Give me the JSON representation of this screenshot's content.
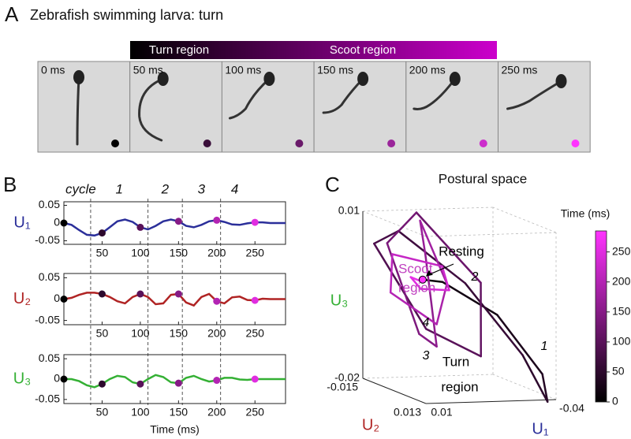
{
  "panel_labels": [
    "A",
    "B",
    "C"
  ],
  "panel_a": {
    "title": "Zebrafish swimming larva: turn",
    "bar_labels": [
      "Turn region",
      "Scoot region"
    ],
    "frames": [
      "0 ms",
      "50 ms",
      "100 ms",
      "150 ms",
      "200 ms",
      "250 ms"
    ],
    "dot_colors": [
      "#000000",
      "#3a0f3a",
      "#6a1a6a",
      "#9a259a",
      "#cc2ecc",
      "#ff33ff"
    ]
  },
  "panel_b": {
    "cycle_label": "cycle",
    "cycle_numbers": [
      "1",
      "2",
      "3",
      "4"
    ],
    "cycle_boundaries": [
      35,
      110,
      155,
      205
    ]
  },
  "chart_data": [
    {
      "type": "line",
      "ylabel": "U₁",
      "color": "#2b2f9a",
      "x": [
        0,
        10,
        20,
        30,
        40,
        50,
        60,
        70,
        80,
        90,
        100,
        110,
        120,
        130,
        140,
        150,
        160,
        170,
        180,
        190,
        200,
        210,
        220,
        230,
        240,
        250,
        260,
        270,
        280,
        290
      ],
      "values": [
        0,
        -0.005,
        -0.02,
        -0.033,
        -0.035,
        -0.028,
        -0.012,
        0.005,
        0.01,
        0.003,
        -0.012,
        -0.018,
        -0.008,
        0.005,
        0.01,
        0.005,
        -0.008,
        -0.012,
        -0.005,
        0.005,
        0.008,
        0.003,
        -0.004,
        -0.005,
        -0.001,
        0.002,
        0.002,
        0,
        0,
        0
      ],
      "ylim": [
        -0.06,
        0.06
      ],
      "yticks": [
        -0.05,
        0,
        0.05
      ],
      "xlim": [
        0,
        290
      ],
      "xticks": [
        50,
        100,
        150,
        200,
        250
      ],
      "markers": {
        "x": [
          0,
          50,
          100,
          150,
          200,
          250
        ]
      }
    },
    {
      "type": "line",
      "ylabel": "U₂",
      "color": "#b02424",
      "x": [
        0,
        10,
        20,
        30,
        40,
        50,
        60,
        70,
        80,
        90,
        100,
        110,
        120,
        130,
        140,
        150,
        160,
        170,
        180,
        190,
        200,
        210,
        220,
        230,
        240,
        250,
        260,
        270,
        280,
        290
      ],
      "values": [
        0,
        0.003,
        0.01,
        0.015,
        0.015,
        0.012,
        0.005,
        -0.005,
        -0.01,
        0.005,
        0.012,
        0.005,
        -0.012,
        -0.01,
        0.01,
        0.012,
        -0.008,
        -0.015,
        0.005,
        0.012,
        -0.005,
        -0.01,
        0.004,
        0.006,
        -0.002,
        -0.003,
        0.001,
        0,
        0,
        0
      ],
      "ylim": [
        -0.06,
        0.06
      ],
      "yticks": [
        -0.05,
        0,
        0.05
      ],
      "xlim": [
        0,
        290
      ],
      "xticks": [
        50,
        100,
        150,
        200,
        250
      ],
      "markers": {
        "x": [
          0,
          50,
          100,
          150,
          200,
          250
        ]
      }
    },
    {
      "type": "line",
      "ylabel": "U₃",
      "color": "#34b034",
      "xlabel": "Time (ms)",
      "x": [
        0,
        10,
        20,
        30,
        40,
        50,
        60,
        70,
        80,
        90,
        100,
        110,
        120,
        130,
        140,
        150,
        160,
        170,
        180,
        190,
        200,
        210,
        220,
        230,
        240,
        250,
        260,
        270,
        280,
        290
      ],
      "values": [
        0,
        0,
        -0.005,
        -0.015,
        -0.02,
        -0.012,
        0,
        0.008,
        0.005,
        -0.008,
        -0.012,
        0,
        0.01,
        0.005,
        -0.008,
        -0.01,
        0.003,
        0.008,
        0,
        -0.006,
        -0.003,
        0.003,
        0.003,
        -0.001,
        -0.002,
        0,
        0,
        0,
        0,
        0
      ],
      "ylim": [
        -0.06,
        0.06
      ],
      "yticks": [
        -0.05,
        0,
        0.05
      ],
      "xlim": [
        0,
        290
      ],
      "xticks": [
        50,
        100,
        150,
        200,
        250
      ],
      "markers": {
        "x": [
          0,
          50,
          100,
          150,
          200,
          250
        ]
      }
    },
    {
      "type": "line3d",
      "title": "Postural space",
      "xlabel": "U₁",
      "ylabel": "U₂",
      "zlabel": "U₃",
      "xlabel_color": "#2b2f9a",
      "ylabel_color": "#b02424",
      "zlabel_color": "#34b034",
      "xlim": [
        0.01,
        -0.04
      ],
      "ylim": [
        0.013,
        -0.015
      ],
      "zlim": [
        -0.02,
        0.01
      ],
      "xticks": [
        0.01,
        -0.04
      ],
      "yticks": [
        -0.015,
        0.013
      ],
      "zticks": [
        -0.02,
        0.01
      ],
      "colorbar": {
        "label": "Time (ms)",
        "lim": [
          0,
          285
        ],
        "ticks": [
          0,
          50,
          100,
          150,
          200,
          250
        ],
        "colors": [
          "#000000",
          "#ff33ff"
        ]
      },
      "annotations": [
        "Scoot",
        "region",
        "Resting",
        "2",
        "4",
        "3",
        "1",
        "Turn",
        "region"
      ]
    }
  ]
}
